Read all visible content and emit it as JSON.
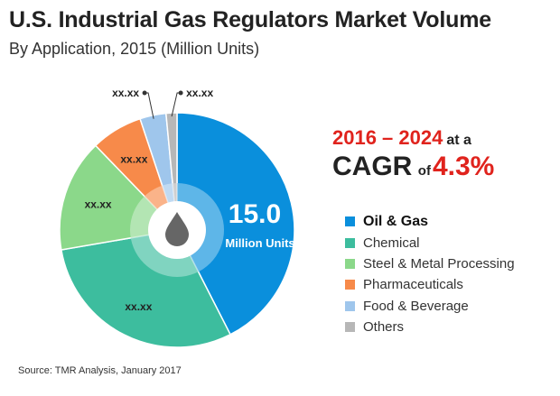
{
  "title": "U.S. Industrial Gas Regulators Market Volume",
  "subtitle": "By Application, 2015 (Million Units)",
  "cagr": {
    "years": "2016 – 2024",
    "at_a": "at a",
    "label": "CAGR",
    "of": "of",
    "value": "4.3%"
  },
  "source": "Source: TMR Analysis, January 2017",
  "chart_data": {
    "type": "pie",
    "title": "U.S. Industrial Gas Regulators Market Volume",
    "subtitle": "By Application, 2015 (Million Units)",
    "center_value": "15.0",
    "center_label": "Million Units",
    "slices": [
      {
        "name": "Oil & Gas",
        "value": 42.5,
        "color": "#0a8fdc",
        "label": ""
      },
      {
        "name": "Chemical",
        "value": 29.8,
        "color": "#3dbd9e",
        "label": "xx.xx"
      },
      {
        "name": "Steel & Metal Processing",
        "value": 15.5,
        "color": "#8bd88a",
        "label": "xx.xx"
      },
      {
        "name": "Pharmaceuticals",
        "value": 7.1,
        "color": "#f78a4a",
        "label": "xx.xx"
      },
      {
        "name": "Food & Beverage",
        "value": 3.6,
        "color": "#9fc6ec",
        "label": "xx.xx"
      },
      {
        "name": "Others",
        "value": 1.5,
        "color": "#b7b7b7",
        "label": "xx.xx"
      }
    ],
    "legend_position": "right"
  }
}
